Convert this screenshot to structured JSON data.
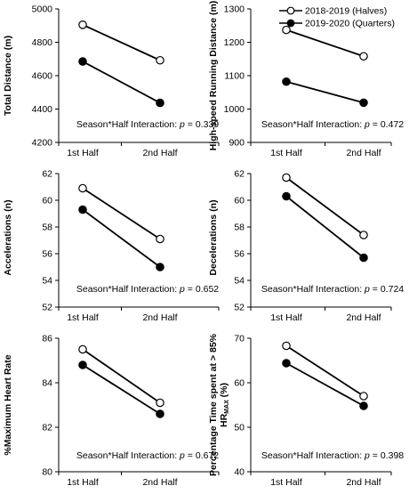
{
  "legend": {
    "position": "top-right",
    "entries": [
      {
        "label": "2018-2019 (Halves)",
        "marker": "open-circle"
      },
      {
        "label": "2019-2020 (Quarters)",
        "marker": "filled-circle"
      }
    ]
  },
  "chart_data": [
    {
      "type": "line",
      "ylabel": "Total Distance (m)",
      "categories": [
        "1st Half",
        "2nd Half"
      ],
      "ylim": [
        4200,
        5000
      ],
      "yticks": [
        "4200",
        "4400",
        "4600",
        "4800",
        "5000"
      ],
      "series": [
        {
          "name": "2018-2019 (Halves)",
          "marker": "open-circle",
          "values": [
            4905,
            4692
          ]
        },
        {
          "name": "2019-2020 (Quarters)",
          "marker": "filled-circle",
          "values": [
            4685,
            4437
          ]
        }
      ],
      "annotation": {
        "prefix": "Season*Half Interaction: ",
        "p_label": "p",
        "suffix": " = 0.339"
      }
    },
    {
      "type": "line",
      "ylabel": "High-speed Running Distance (m)",
      "categories": [
        "1st Half",
        "2nd Half"
      ],
      "ylim": [
        900,
        1300
      ],
      "yticks": [
        "900",
        "1000",
        "1100",
        "1200",
        "1300"
      ],
      "series": [
        {
          "name": "2018-2019 (Halves)",
          "marker": "open-circle",
          "values": [
            1237,
            1158
          ]
        },
        {
          "name": "2019-2020 (Quarters)",
          "marker": "filled-circle",
          "values": [
            1082,
            1019
          ]
        }
      ],
      "annotation": {
        "prefix": "Season*Half Interaction: ",
        "p_label": "p",
        "suffix": " = 0.472"
      }
    },
    {
      "type": "line",
      "ylabel": "Accelerations (n)",
      "categories": [
        "1st Half",
        "2nd Half"
      ],
      "ylim": [
        52,
        62
      ],
      "yticks": [
        "52",
        "54",
        "56",
        "58",
        "60",
        "62"
      ],
      "series": [
        {
          "name": "2018-2019 (Halves)",
          "marker": "open-circle",
          "values": [
            60.9,
            57.1
          ]
        },
        {
          "name": "2019-2020 (Quarters)",
          "marker": "filled-circle",
          "values": [
            59.3,
            55.0
          ]
        }
      ],
      "annotation": {
        "prefix": "Season*Half Interaction: ",
        "p_label": "p",
        "suffix": " = 0.652"
      }
    },
    {
      "type": "line",
      "ylabel": "Decelerations (n)",
      "categories": [
        "1st Half",
        "2nd Half"
      ],
      "ylim": [
        52,
        62
      ],
      "yticks": [
        "52",
        "54",
        "56",
        "58",
        "60",
        "62"
      ],
      "series": [
        {
          "name": "2018-2019 (Halves)",
          "marker": "open-circle",
          "values": [
            61.7,
            57.4
          ]
        },
        {
          "name": "2019-2020 (Quarters)",
          "marker": "filled-circle",
          "values": [
            60.3,
            55.7
          ]
        }
      ],
      "annotation": {
        "prefix": "Season*Half Interaction: ",
        "p_label": "p",
        "suffix": " = 0.724"
      }
    },
    {
      "type": "line",
      "ylabel": "%Maximum Heart Rate",
      "categories": [
        "1st Half",
        "2nd Half"
      ],
      "ylim": [
        80,
        86
      ],
      "yticks": [
        "80",
        "82",
        "84",
        "86"
      ],
      "series": [
        {
          "name": "2018-2019 (Halves)",
          "marker": "open-circle",
          "values": [
            85.5,
            83.1
          ]
        },
        {
          "name": "2019-2020 (Quarters)",
          "marker": "filled-circle",
          "values": [
            84.8,
            82.6
          ]
        }
      ],
      "annotation": {
        "prefix": "Season*Half Interaction: ",
        "p_label": "p",
        "suffix": " = 0.672"
      }
    },
    {
      "type": "line",
      "ylabel_line1": "Percentage Time spent at > 85%",
      "ylabel_line2_main": "HR",
      "ylabel_line2_sub": "MAX",
      "ylabel_line2_end": " (%)",
      "categories": [
        "1st Half",
        "2nd Half"
      ],
      "ylim": [
        40,
        70
      ],
      "yticks": [
        "40",
        "50",
        "60",
        "70"
      ],
      "series": [
        {
          "name": "2018-2019 (Halves)",
          "marker": "open-circle",
          "values": [
            68.3,
            57.0
          ]
        },
        {
          "name": "2019-2020 (Quarters)",
          "marker": "filled-circle",
          "values": [
            64.4,
            54.8
          ]
        }
      ],
      "annotation": {
        "prefix": "Season*Half Interaction: ",
        "p_label": "p",
        "suffix": " = 0.398"
      }
    }
  ]
}
